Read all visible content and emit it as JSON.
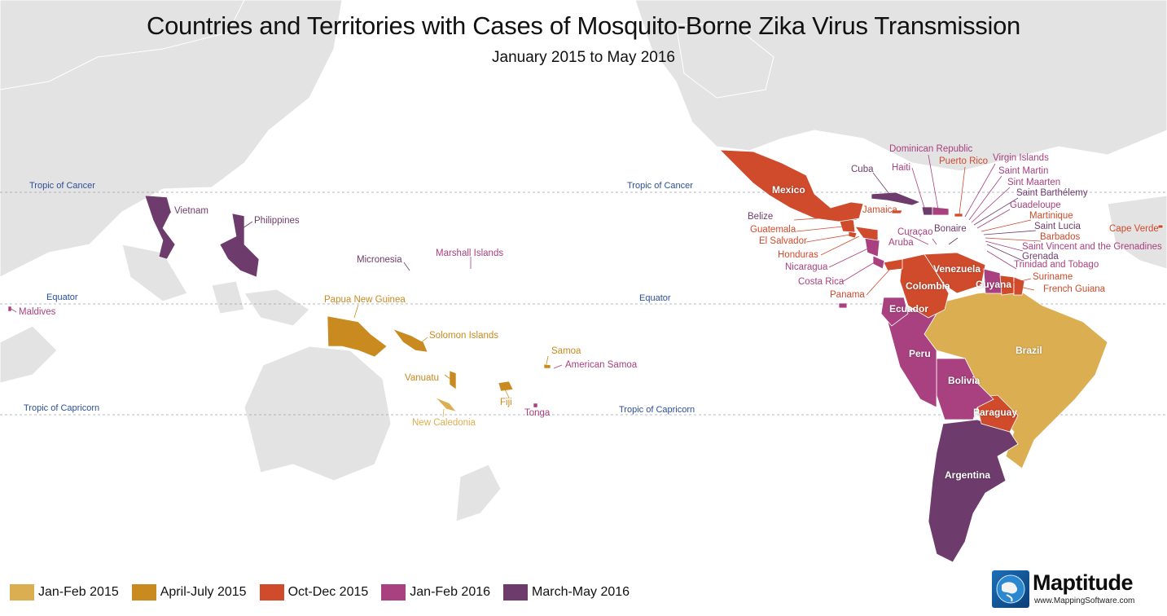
{
  "title": "Countries and Territories with Cases of Mosquito-Borne Zika Virus Transmission",
  "subtitle": "January 2015 to May 2016",
  "colors": {
    "jan_feb_2015": "#dcae52",
    "april_july_2015": "#c98a1f",
    "oct_dec_2015": "#d04a2c",
    "jan_feb_2016": "#a9407f",
    "march_may_2016": "#6e3c6c",
    "land": "#e3e3e3",
    "ocean": "#ffffff",
    "geo_line": "#2a4f9a"
  },
  "geo_lines": {
    "tropic_of_cancer": "Tropic of Cancer",
    "equator": "Equator",
    "tropic_of_capricorn": "Tropic of Capricorn"
  },
  "labels": {
    "vietnam": "Vietnam",
    "philippines": "Philippines",
    "micronesia": "Micronesia",
    "marshall_islands": "Marshall Islands",
    "maldives": "Maldives",
    "papua_new_guinea": "Papua New Guinea",
    "solomon_islands": "Solomon Islands",
    "samoa": "Samoa",
    "american_samoa": "American Samoa",
    "vanuatu": "Vanuatu",
    "fiji": "Fiji",
    "tonga": "Tonga",
    "new_caledonia": "New Caledonia",
    "mexico": "Mexico",
    "cuba": "Cuba",
    "haiti": "Haiti",
    "dominican_republic": "Dominican Republic",
    "puerto_rico": "Puerto Rico",
    "virgin_islands": "Virgin Islands",
    "saint_martin": "Saint Martin",
    "sint_maarten": "Sint Maarten",
    "saint_barthelemy": "Saint Barthélemy",
    "guadeloupe": "Guadeloupe",
    "martinique": "Martinique",
    "saint_lucia": "Saint Lucia",
    "barbados": "Barbados",
    "saint_vincent": "Saint Vincent and the Grenadines",
    "grenada": "Grenada",
    "trinidad_tobago": "Trinidad and Tobago",
    "suriname": "Suriname",
    "french_guiana": "French Guiana",
    "cape_verde": "Cape Verde",
    "jamaica": "Jamaica",
    "belize": "Belize",
    "guatemala": "Guatemala",
    "el_salvador": "El Salvador",
    "honduras": "Honduras",
    "nicaragua": "Nicaragua",
    "costa_rica": "Costa Rica",
    "panama": "Panama",
    "curacao": "Curaçao",
    "aruba": "Aruba",
    "bonaire": "Bonaire",
    "venezuela": "Venezuela",
    "colombia": "Colombia",
    "guyana": "Guyana",
    "ecuador": "Ecuador",
    "peru": "Peru",
    "brazil": "Brazil",
    "bolivia": "Bolivia",
    "paraguay": "Paraguay",
    "argentina": "Argentina"
  },
  "legend": [
    {
      "label": "Jan-Feb 2015",
      "color": "#dcae52"
    },
    {
      "label": "April-July 2015",
      "color": "#c98a1f"
    },
    {
      "label": "Oct-Dec 2015",
      "color": "#d04a2c"
    },
    {
      "label": "Jan-Feb 2016",
      "color": "#a9407f"
    },
    {
      "label": "March-May 2016",
      "color": "#6e3c6c"
    }
  ],
  "brand": {
    "name": "Maptitude",
    "url": "www.MappingSoftware.com"
  }
}
